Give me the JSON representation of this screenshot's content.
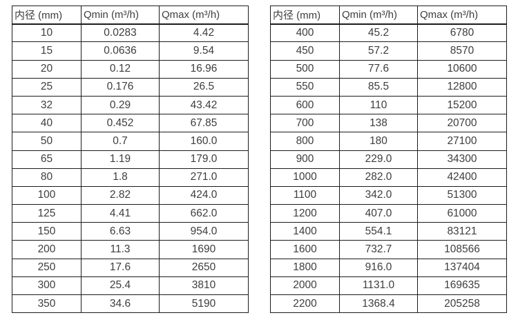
{
  "page": {
    "background_color": "#ffffff",
    "text_color": "#3d3d3d",
    "border_color": "#1a1a1a"
  },
  "chart_data": [
    {
      "type": "table",
      "name": "flow-range-table-small-diameters",
      "columns": [
        "内径 (mm)",
        "Qmin (m³/h)",
        "Qmax (m³/h)"
      ],
      "rows": [
        [
          "10",
          "0.0283",
          "4.42"
        ],
        [
          "15",
          "0.0636",
          "9.54"
        ],
        [
          "20",
          "0.12",
          "16.96"
        ],
        [
          "25",
          "0.176",
          "26.5"
        ],
        [
          "32",
          "0.29",
          "43.42"
        ],
        [
          "40",
          "0.452",
          "67.85"
        ],
        [
          "50",
          "0.7",
          "160.0"
        ],
        [
          "65",
          "1.19",
          "179.0"
        ],
        [
          "80",
          "1.8",
          "271.0"
        ],
        [
          "100",
          "2.82",
          "424.0"
        ],
        [
          "125",
          "4.41",
          "662.0"
        ],
        [
          "150",
          "6.63",
          "954.0"
        ],
        [
          "200",
          "11.3",
          "1690"
        ],
        [
          "250",
          "17.6",
          "2650"
        ],
        [
          "300",
          "25.4",
          "3810"
        ],
        [
          "350",
          "34.6",
          "5190"
        ]
      ]
    },
    {
      "type": "table",
      "name": "flow-range-table-large-diameters",
      "columns": [
        "内径 (mm)",
        "Qmin (m³/h)",
        "Qmax (m³/h)"
      ],
      "rows": [
        [
          "400",
          "45.2",
          "6780"
        ],
        [
          "450",
          "57.2",
          "8570"
        ],
        [
          "500",
          "77.6",
          "10600"
        ],
        [
          "550",
          "85.5",
          "12800"
        ],
        [
          "600",
          "110",
          "15200"
        ],
        [
          "700",
          "138",
          "20700"
        ],
        [
          "800",
          "180",
          "27100"
        ],
        [
          "900",
          "229.0",
          "34300"
        ],
        [
          "1000",
          "282.0",
          "42400"
        ],
        [
          "1100",
          "342.0",
          "51300"
        ],
        [
          "1200",
          "407.0",
          "61000"
        ],
        [
          "1400",
          "554.1",
          "83121"
        ],
        [
          "1600",
          "732.7",
          "108566"
        ],
        [
          "1800",
          "916.0",
          "137404"
        ],
        [
          "2000",
          "1131.0",
          "169635"
        ],
        [
          "2200",
          "1368.4",
          "205258"
        ]
      ]
    }
  ]
}
